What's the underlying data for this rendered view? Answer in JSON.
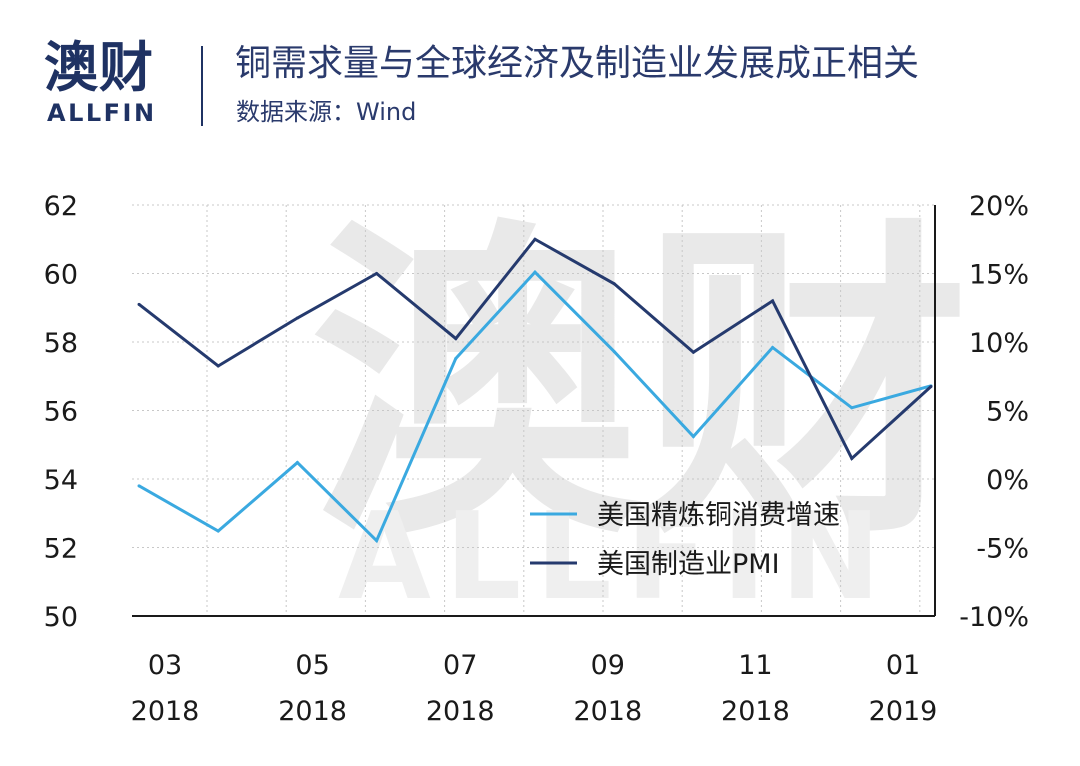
{
  "header": {
    "logo_cn": "澳财",
    "logo_en": "ALLFIN",
    "title": "铜需求量与全球经济及制造业发展成正相关",
    "subtitle": "数据来源：Wind"
  },
  "watermark": {
    "cn": "澳财",
    "en": "ALLFIN"
  },
  "colors": {
    "brand": "#1f3263",
    "light_series": "#3aa9e0",
    "dark_series": "#253a6e",
    "axis": "#1a1a1a",
    "grid": "#c8c8c8"
  },
  "chart_data": {
    "type": "line",
    "x": [
      "2018-03",
      "2018-04",
      "2018-05",
      "2018-06",
      "2018-07",
      "2018-08",
      "2018-09",
      "2018-10",
      "2018-11",
      "2018-12",
      "2019-01"
    ],
    "x_tick_labels": [
      {
        "month": "03",
        "year": "2018"
      },
      {
        "month": "05",
        "year": "2018"
      },
      {
        "month": "07",
        "year": "2018"
      },
      {
        "month": "09",
        "year": "2018"
      },
      {
        "month": "11",
        "year": "2018"
      },
      {
        "month": "01",
        "year": "2019"
      }
    ],
    "left_axis": {
      "ylim": [
        50,
        62
      ],
      "ticks": [
        "62",
        "60",
        "58",
        "56",
        "54",
        "52",
        "50"
      ]
    },
    "right_axis": {
      "ylim": [
        -10,
        20
      ],
      "ticks": [
        "20%",
        "15%",
        "10%",
        "5%",
        "0%",
        "-5%",
        "-10%"
      ]
    },
    "series": [
      {
        "name": "美国精炼铜消费增速",
        "axis": "right",
        "unit": "%",
        "values": [
          -0.5,
          -3.8,
          1.2,
          -4.5,
          8.8,
          15.1,
          9.3,
          3.1,
          9.6,
          5.2,
          6.8
        ]
      },
      {
        "name": "美国制造业PMI",
        "axis": "left",
        "values": [
          59.1,
          57.3,
          58.7,
          60.0,
          58.1,
          61.0,
          59.7,
          57.7,
          59.2,
          54.6,
          56.7
        ]
      }
    ],
    "grid": true,
    "legend_position": "lower-right"
  }
}
